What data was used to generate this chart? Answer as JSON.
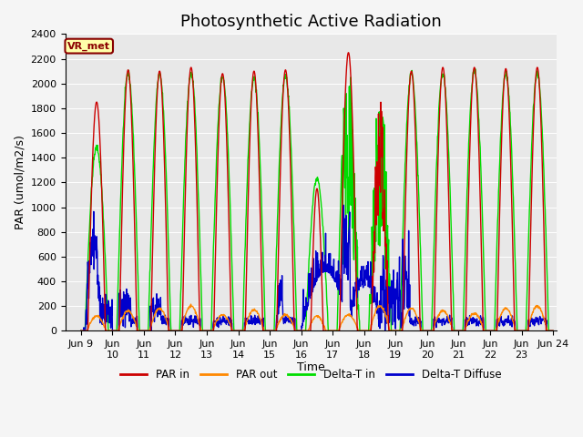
{
  "title": "Photosynthetic Active Radiation",
  "ylabel": "PAR (umol/m2/s)",
  "xlabel": "Time",
  "ylim": [
    0,
    2400
  ],
  "xlim_start": 8.5,
  "xlim_end": 24.1,
  "xtick_positions": [
    9,
    10,
    11,
    12,
    13,
    14,
    15,
    16,
    17,
    18,
    19,
    20,
    21,
    22,
    23,
    24
  ],
  "xtick_labels": [
    "Jun 9",
    "Jun\n10",
    "Jun\n11",
    "Jun\n12",
    "Jun\n13",
    "Jun\n14",
    "Jun\n15",
    "Jun\n16",
    "Jun\n17",
    "Jun\n18",
    "Jun\n19",
    "Jun\n20",
    "Jun\n21",
    "Jun\n22",
    "Jun\n23",
    "Jun 24"
  ],
  "ytick_positions": [
    0,
    200,
    400,
    600,
    800,
    1000,
    1200,
    1400,
    1600,
    1800,
    2000,
    2200,
    2400
  ],
  "fig_bg_color": "#f5f5f5",
  "plot_bg_color": "#e8e8e8",
  "grid_color": "#ffffff",
  "color_par_in": "#cc0000",
  "color_par_out": "#ff8800",
  "color_delta_t_in": "#00dd00",
  "color_delta_t_diffuse": "#0000cc",
  "legend_label": "VR_met",
  "legend_bg": "#ffffaa",
  "legend_border": "#880000",
  "title_fontsize": 13,
  "label_fontsize": 9,
  "tick_fontsize": 8
}
